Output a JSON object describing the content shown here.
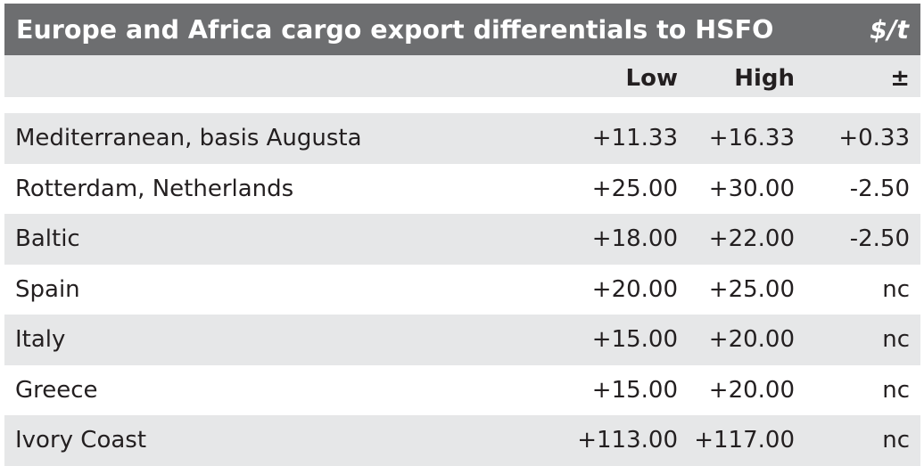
{
  "title": "Europe and Africa cargo export differentials to HSFO",
  "unit": "$/t",
  "columns": {
    "low": "Low",
    "high": "High",
    "change": "±"
  },
  "rows": [
    {
      "name": "Mediterranean, basis Augusta",
      "low": "+11.33",
      "high": "+16.33",
      "change": "+0.33"
    },
    {
      "name": "Rotterdam, Netherlands",
      "low": "+25.00",
      "high": "+30.00",
      "change": "-2.50"
    },
    {
      "name": "Baltic",
      "low": "+18.00",
      "high": "+22.00",
      "change": "-2.50"
    },
    {
      "name": "Spain",
      "low": "+20.00",
      "high": "+25.00",
      "change": "nc"
    },
    {
      "name": "Italy",
      "low": "+15.00",
      "high": "+20.00",
      "change": "nc"
    },
    {
      "name": "Greece",
      "low": "+15.00",
      "high": "+20.00",
      "change": "nc"
    },
    {
      "name": "Ivory Coast",
      "low": "+113.00",
      "high": "+117.00",
      "change": "nc"
    }
  ],
  "colors": {
    "title_bg": "#6d6e70",
    "title_text": "#ffffff",
    "shade_bg": "#e6e7e8",
    "text": "#231f20"
  }
}
